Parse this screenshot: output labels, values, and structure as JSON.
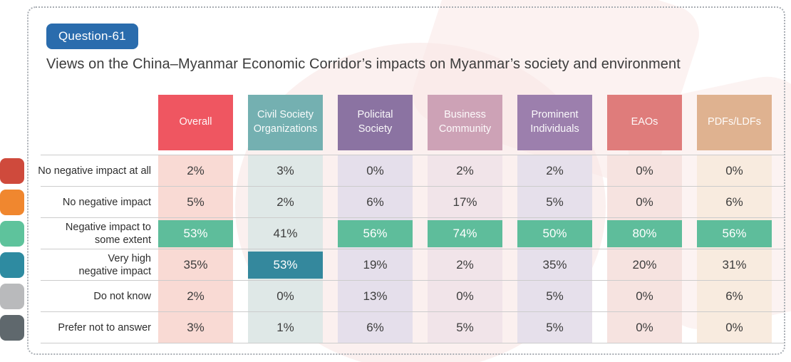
{
  "badge": {
    "label": "Question-61",
    "color": "#2a6cad"
  },
  "title": "Views on the China–Myanmar Economic Corridor’s impacts on Myanmar’s society and environment",
  "chart_data": {
    "type": "table",
    "title": "Views on the China–Myanmar Economic Corridor’s impacts on Myanmar’s society and environment",
    "question": "Question-61",
    "categories": [
      "Overall",
      "Civil Society Organizations",
      "Policital Society",
      "Business Community",
      "Prominent Individuals",
      "EAOs",
      "PDFs/LDFs"
    ],
    "rows": [
      "No negative impact at all",
      "No negative impact",
      "Negative impact to some extent",
      "Very high negative impact",
      "Do not know",
      "Prefer not to answer"
    ],
    "values_percent": [
      [
        2,
        3,
        0,
        2,
        2,
        0,
        0
      ],
      [
        5,
        2,
        6,
        17,
        5,
        0,
        6
      ],
      [
        53,
        41,
        56,
        74,
        50,
        80,
        56
      ],
      [
        35,
        53,
        19,
        2,
        35,
        20,
        31
      ],
      [
        2,
        0,
        13,
        0,
        5,
        0,
        6
      ],
      [
        3,
        1,
        6,
        5,
        5,
        0,
        0
      ]
    ],
    "highlighted_cells": "Row 'Negative impact to some extent' highlighted green in all columns except Civil Society Organizations; 'Very high negative impact' highlighted teal in Civil Society Organizations"
  },
  "colors": {
    "highlight_green": "#5ebd9b",
    "highlight_teal": "#34889d",
    "separator_line": "#cccccc"
  },
  "table": {
    "columns": [
      {
        "label": "Overall",
        "color": "#ef5661",
        "tint": "#f9dad4"
      },
      {
        "label": "Civil Society Organizations",
        "color": "#74b0b1",
        "tint": "#dfe8e7"
      },
      {
        "label": "Policital Society",
        "color": "#8b73a2",
        "tint": "#e5dfeb"
      },
      {
        "label": "Business Community",
        "color": "#cda2b6",
        "tint": "#f1e4e9"
      },
      {
        "label": "Prominent Individuals",
        "color": "#9c7fad",
        "tint": "#e6e0eb"
      },
      {
        "label": "EAOs",
        "color": "#df7c7b",
        "tint": "#f6e3e0"
      },
      {
        "label": "PDFs/LDFs",
        "color": "#dfb290",
        "tint": "#f8ebdf"
      }
    ],
    "rows": [
      {
        "label": "No negative impact at all",
        "legend_color": "#cf4a3c",
        "cells": [
          {
            "text": "2%"
          },
          {
            "text": "3%"
          },
          {
            "text": "0%"
          },
          {
            "text": "2%"
          },
          {
            "text": "2%"
          },
          {
            "text": "0%"
          },
          {
            "text": "0%"
          }
        ]
      },
      {
        "label": "No negative impact",
        "legend_color": "#f0872f",
        "cells": [
          {
            "text": "5%"
          },
          {
            "text": "2%"
          },
          {
            "text": "6%"
          },
          {
            "text": "17%"
          },
          {
            "text": "5%"
          },
          {
            "text": "0%"
          },
          {
            "text": "6%"
          }
        ]
      },
      {
        "label": "Negative impact to\nsome extent",
        "legend_color": "#5ec39c",
        "cells": [
          {
            "text": "53%",
            "hl": "#5ebd9b"
          },
          {
            "text": "41%"
          },
          {
            "text": "56%",
            "hl": "#5ebd9b"
          },
          {
            "text": "74%",
            "hl": "#5ebd9b"
          },
          {
            "text": "50%",
            "hl": "#5ebd9b"
          },
          {
            "text": "80%",
            "hl": "#5ebd9b"
          },
          {
            "text": "56%",
            "hl": "#5ebd9b"
          }
        ]
      },
      {
        "label": "Very high\nnegative impact",
        "legend_color": "#2e8ba1",
        "cells": [
          {
            "text": "35%"
          },
          {
            "text": "53%",
            "hl": "#34889d"
          },
          {
            "text": "19%"
          },
          {
            "text": "2%"
          },
          {
            "text": "35%"
          },
          {
            "text": "20%"
          },
          {
            "text": "31%"
          }
        ]
      },
      {
        "label": "Do not know",
        "legend_color": "#b9babc",
        "cells": [
          {
            "text": "2%"
          },
          {
            "text": "0%"
          },
          {
            "text": "13%"
          },
          {
            "text": "0%"
          },
          {
            "text": "5%"
          },
          {
            "text": "0%"
          },
          {
            "text": "6%"
          }
        ]
      },
      {
        "label": "Prefer not to answer",
        "legend_color": "#5f686d",
        "cells": [
          {
            "text": "3%"
          },
          {
            "text": "1%"
          },
          {
            "text": "6%"
          },
          {
            "text": "5%"
          },
          {
            "text": "5%"
          },
          {
            "text": "0%"
          },
          {
            "text": "0%"
          }
        ]
      }
    ]
  }
}
